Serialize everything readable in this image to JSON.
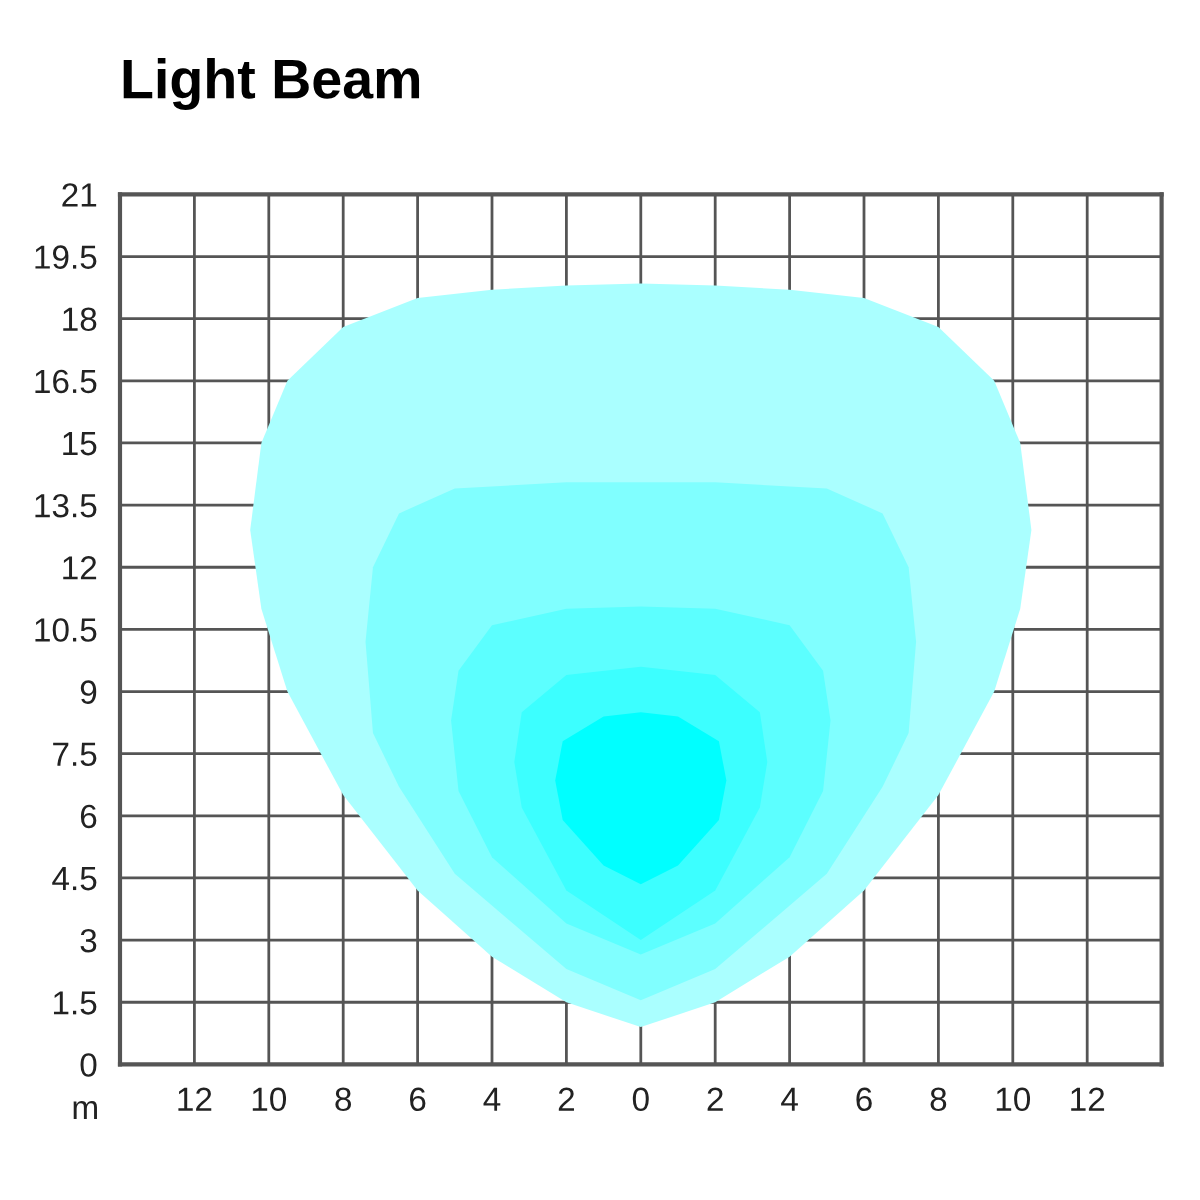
{
  "chart_data": {
    "type": "area",
    "title": "Light Beam",
    "xlabel": "m",
    "series": [
      {
        "color": "#aaffff",
        "x": [
          -10.5,
          -10.2,
          -9.5,
          -8,
          -6,
          -4,
          -2,
          0,
          2,
          4,
          6,
          8,
          9.5,
          10.2,
          10.5,
          10.2,
          9.5,
          8,
          6,
          4,
          2,
          0,
          -2,
          -4,
          -6,
          -8,
          -9.5,
          -10.2
        ],
        "values": [
          12.9,
          15,
          16.5,
          17.8,
          18.5,
          18.7,
          18.8,
          18.85,
          18.8,
          18.7,
          18.5,
          17.8,
          16.5,
          15,
          12.9,
          11,
          9,
          6.5,
          4.2,
          2.6,
          1.5,
          0.9,
          1.5,
          2.6,
          4.2,
          6.5,
          9,
          11
        ]
      },
      {
        "color": "#80ffff",
        "x": [
          -7.4,
          -7.2,
          -6.5,
          -5,
          -2,
          0,
          2,
          5,
          6.5,
          7.2,
          7.4,
          7.2,
          6.5,
          5,
          2,
          0,
          -2,
          -5,
          -6.5,
          -7.2
        ],
        "values": [
          10.2,
          12,
          13.3,
          13.9,
          14.05,
          14.05,
          14.05,
          13.9,
          13.3,
          12,
          10.2,
          8,
          6.7,
          4.6,
          2.3,
          1.55,
          2.3,
          4.6,
          6.7,
          8
        ]
      },
      {
        "color": "#5cffff",
        "x": [
          -5.1,
          -4.9,
          -4,
          -2,
          0,
          2,
          4,
          4.9,
          5.1,
          4.9,
          4,
          2,
          0,
          -2,
          -4,
          -4.9
        ],
        "values": [
          8.3,
          9.5,
          10.6,
          11,
          11.05,
          11,
          10.6,
          9.5,
          8.3,
          6.6,
          5,
          3.4,
          2.65,
          3.4,
          5,
          6.6
        ]
      },
      {
        "color": "#3cffff",
        "x": [
          -3.4,
          -3.2,
          -2,
          0,
          2,
          3.2,
          3.4,
          3.2,
          2,
          0,
          -2,
          -3.2
        ],
        "values": [
          7.3,
          8.5,
          9.4,
          9.6,
          9.4,
          8.5,
          7.3,
          6.2,
          4.2,
          3,
          4.2,
          6.2
        ]
      },
      {
        "color": "#00ffff",
        "x": [
          -2.3,
          -2.1,
          -1,
          0,
          1,
          2.1,
          2.3,
          2.1,
          1,
          0,
          -1,
          -2.1
        ],
        "values": [
          6.85,
          7.8,
          8.4,
          8.5,
          8.4,
          7.8,
          6.85,
          5.9,
          4.8,
          4.35,
          4.8,
          5.9
        ]
      }
    ],
    "xlim": [
      -14,
      14
    ],
    "xticks": [
      {
        "value": -12,
        "label": "12"
      },
      {
        "value": -10,
        "label": "10"
      },
      {
        "value": -8,
        "label": "8"
      },
      {
        "value": -6,
        "label": "6"
      },
      {
        "value": -4,
        "label": "4"
      },
      {
        "value": -2,
        "label": "2"
      },
      0,
      2,
      4,
      6,
      8,
      10,
      12
    ],
    "ylim": [
      0,
      21
    ],
    "yticks": [
      0,
      1.5,
      3,
      4.5,
      6,
      7.5,
      9,
      10.5,
      12,
      13.5,
      15,
      16.5,
      18,
      19.5,
      21
    ],
    "grid": true
  }
}
